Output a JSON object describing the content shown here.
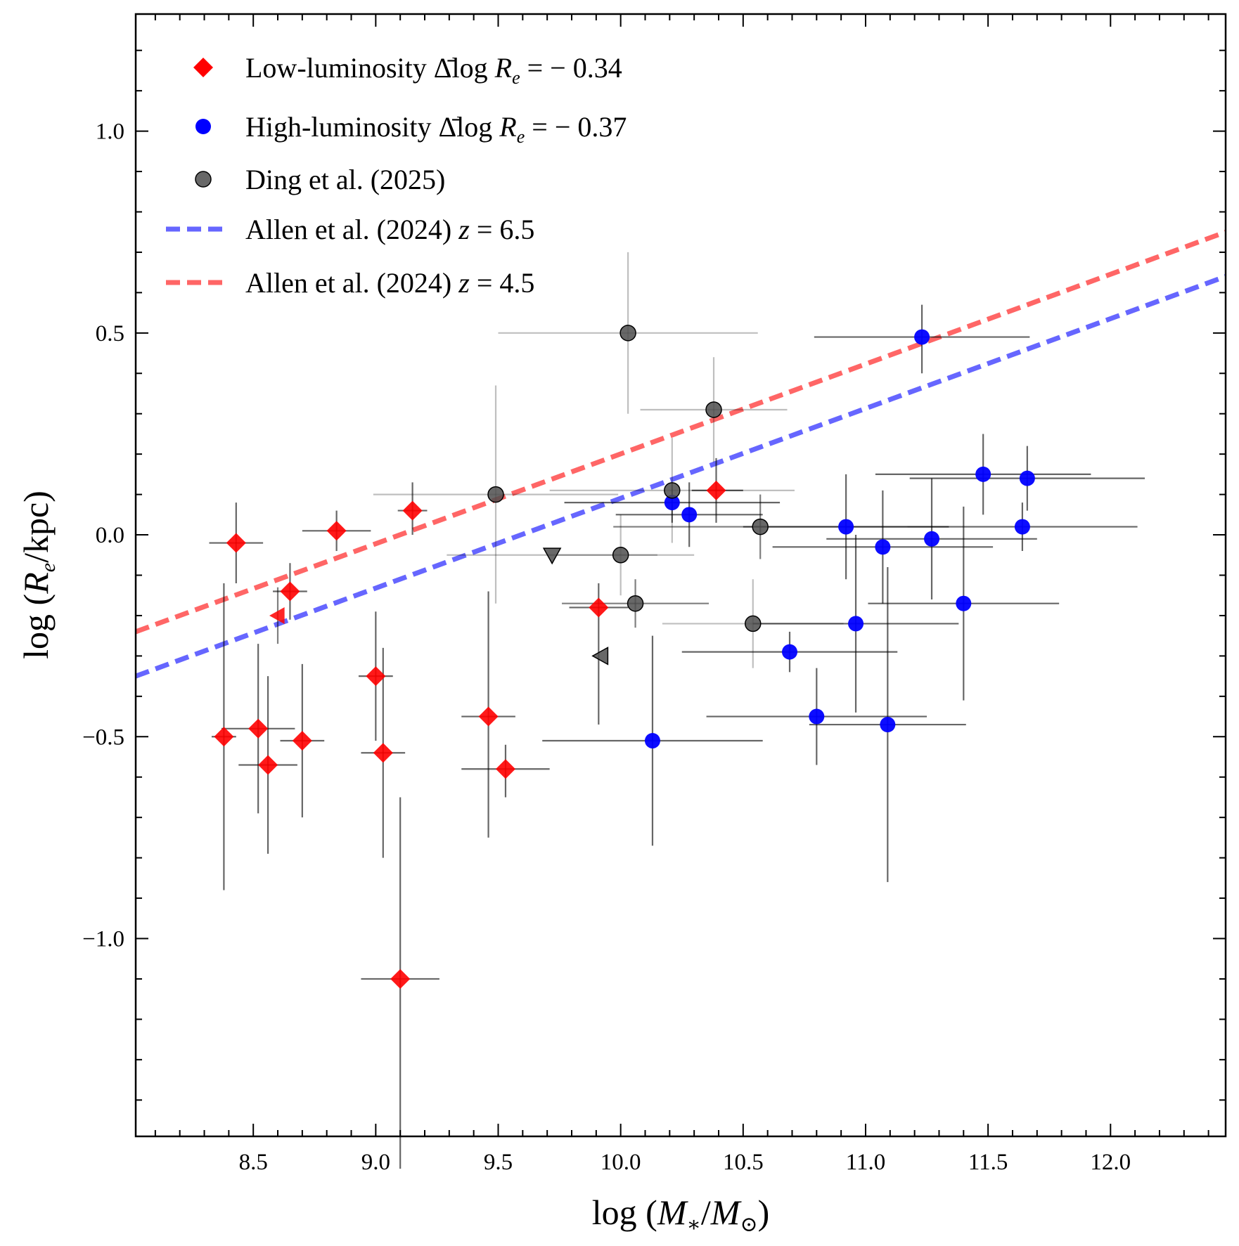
{
  "chart_data": {
    "type": "scatter",
    "xlabel": {
      "prefix": "log",
      "main": "M",
      "sub": "∗",
      "sep": "/",
      "main2": "M",
      "sub2": "⊙"
    },
    "ylabel": {
      "prefix": "log",
      "main": "R",
      "sub": "e",
      "suffix": "/kpc"
    },
    "xlim": [
      8.02,
      12.47
    ],
    "ylim": [
      -1.49,
      1.29
    ],
    "x_ticks": [
      {
        "value": 8.5,
        "label": "8.5"
      },
      {
        "value": 9.0,
        "label": "9.0"
      },
      {
        "value": 9.5,
        "label": "9.5"
      },
      {
        "value": 10.0,
        "label": "10.0"
      },
      {
        "value": 10.5,
        "label": "10.5"
      },
      {
        "value": 11.0,
        "label": "11.0"
      },
      {
        "value": 11.5,
        "label": "11.5"
      },
      {
        "value": 12.0,
        "label": "12.0"
      }
    ],
    "y_ticks": [
      {
        "value": 1.0,
        "label": "1.0"
      },
      {
        "value": 0.5,
        "label": "0.5"
      },
      {
        "value": 0.0,
        "label": "0.0"
      },
      {
        "value": -0.5,
        "label": "−0.5"
      },
      {
        "value": -1.0,
        "label": "−1.0"
      }
    ],
    "grid": false,
    "legend_position": "top-left",
    "legend": [
      {
        "marker": "diamond",
        "color": "#ff0000",
        "text": "Low-luminosity ",
        "math": {
          "prefix": "Δ̄log ",
          "main": "R",
          "sub": "e",
          "rest": " = − 0.34"
        }
      },
      {
        "marker": "circle",
        "color": "#0000ff",
        "text": "High-luminosity ",
        "math": {
          "prefix": "Δ̄log ",
          "main": "R",
          "sub": "e",
          "rest": " = − 0.37"
        }
      },
      {
        "marker": "circle",
        "color": "#4d4d4d",
        "text": "Ding et al. (2025)",
        "math": null
      },
      {
        "marker": "dashed-line",
        "color": "#6666ff",
        "text": "Allen et al. (2024) ",
        "math": {
          "prefix": "",
          "main": "z",
          "sub": "",
          "rest": " = 6.5"
        }
      },
      {
        "marker": "dashed-line",
        "color": "#ff6666",
        "text": "Allen et al. (2024) ",
        "math": {
          "prefix": "",
          "main": "z",
          "sub": "",
          "rest": " = 4.5"
        }
      }
    ],
    "series": [
      {
        "name": "Low-luminosity",
        "marker": "diamond",
        "color": "#ff0000",
        "points": [
          {
            "x": 8.43,
            "y": -0.02,
            "xerr": [
              0.11,
              0.11
            ],
            "yerr": [
              0.1,
              0.1
            ]
          },
          {
            "x": 8.84,
            "y": 0.01,
            "xerr": [
              0.14,
              0.14
            ],
            "yerr": [
              0.05,
              0.05
            ]
          },
          {
            "x": 9.15,
            "y": 0.06,
            "xerr": [
              0.06,
              0.06
            ],
            "yerr": [
              0.06,
              0.07
            ]
          },
          {
            "x": 8.65,
            "y": -0.14,
            "xerr": [
              0.07,
              0.07
            ],
            "yerr": [
              0.07,
              0.07
            ]
          },
          {
            "x": 8.38,
            "y": -0.5,
            "xerr": [
              0.05,
              0.05
            ],
            "yerr": [
              0.38,
              0.38
            ]
          },
          {
            "x": 8.52,
            "y": -0.48,
            "xerr": [
              0.15,
              0.15
            ],
            "yerr": [
              0.21,
              0.21
            ]
          },
          {
            "x": 8.56,
            "y": -0.57,
            "xerr": [
              0.12,
              0.12
            ],
            "yerr": [
              0.22,
              0.22
            ]
          },
          {
            "x": 8.7,
            "y": -0.51,
            "xerr": [
              0.09,
              0.09
            ],
            "yerr": [
              0.19,
              0.19
            ]
          },
          {
            "x": 9.0,
            "y": -0.35,
            "xerr": [
              0.07,
              0.07
            ],
            "yerr": [
              0.16,
              0.16
            ]
          },
          {
            "x": 9.03,
            "y": -0.54,
            "xerr": [
              0.09,
              0.09
            ],
            "yerr": [
              0.26,
              0.26
            ]
          },
          {
            "x": 9.1,
            "y": -1.1,
            "xerr": [
              0.16,
              0.16
            ],
            "yerr": [
              0.47,
              0.45
            ]
          },
          {
            "x": 9.46,
            "y": -0.45,
            "xerr": [
              0.11,
              0.11
            ],
            "yerr": [
              0.3,
              0.31
            ]
          },
          {
            "x": 9.53,
            "y": -0.58,
            "xerr": [
              0.18,
              0.18
            ],
            "yerr": [
              0.07,
              0.06
            ]
          },
          {
            "x": 9.91,
            "y": -0.18,
            "xerr": [
              0.12,
              0.12
            ],
            "yerr": [
              0.29,
              0.06
            ]
          },
          {
            "x": 10.39,
            "y": 0.11,
            "xerr": [
              0.1,
              0.11
            ],
            "yerr": [
              0.08,
              0.08
            ]
          }
        ]
      },
      {
        "name": "High-luminosity",
        "marker": "circle",
        "color": "#0000ff",
        "points": [
          {
            "x": 11.23,
            "y": 0.49,
            "xerr": [
              0.44,
              0.44
            ],
            "yerr": [
              0.09,
              0.08
            ]
          },
          {
            "x": 10.21,
            "y": 0.08,
            "xerr": [
              0.44,
              0.44
            ],
            "yerr": [
              0.05,
              0.05
            ]
          },
          {
            "x": 10.28,
            "y": 0.05,
            "xerr": [
              0.3,
              0.3
            ],
            "yerr": [
              0.08,
              0.08
            ]
          },
          {
            "x": 10.69,
            "y": -0.29,
            "xerr": [
              0.44,
              0.44
            ],
            "yerr": [
              0.05,
              0.05
            ]
          },
          {
            "x": 10.13,
            "y": -0.51,
            "xerr": [
              0.45,
              0.45
            ],
            "yerr": [
              0.26,
              0.26
            ]
          },
          {
            "x": 10.92,
            "y": 0.02,
            "xerr": [
              0.42,
              0.42
            ],
            "yerr": [
              0.13,
              0.13
            ]
          },
          {
            "x": 10.96,
            "y": -0.22,
            "xerr": [
              0.42,
              0.42
            ],
            "yerr": [
              0.22,
              0.22
            ]
          },
          {
            "x": 11.07,
            "y": -0.03,
            "xerr": [
              0.45,
              0.45
            ],
            "yerr": [
              0.14,
              0.14
            ]
          },
          {
            "x": 11.27,
            "y": -0.01,
            "xerr": [
              0.43,
              0.43
            ],
            "yerr": [
              0.15,
              0.15
            ]
          },
          {
            "x": 10.8,
            "y": -0.45,
            "xerr": [
              0.45,
              0.45
            ],
            "yerr": [
              0.12,
              0.12
            ]
          },
          {
            "x": 11.09,
            "y": -0.47,
            "xerr": [
              0.32,
              0.32
            ],
            "yerr": [
              0.39,
              0.39
            ]
          },
          {
            "x": 11.4,
            "y": -0.17,
            "xerr": [
              0.39,
              0.39
            ],
            "yerr": [
              0.24,
              0.24
            ]
          },
          {
            "x": 11.48,
            "y": 0.15,
            "xerr": [
              0.44,
              0.44
            ],
            "yerr": [
              0.1,
              0.1
            ]
          },
          {
            "x": 11.66,
            "y": 0.14,
            "xerr": [
              0.48,
              0.48
            ],
            "yerr": [
              0.08,
              0.08
            ]
          },
          {
            "x": 11.64,
            "y": 0.02,
            "xerr": [
              0.47,
              0.47
            ],
            "yerr": [
              0.06,
              0.06
            ]
          }
        ]
      },
      {
        "name": "Ding et al. (2025)",
        "marker": "circle",
        "color": "#4d4d4d",
        "points": [
          {
            "x": 10.03,
            "y": 0.5,
            "xerr": [
              0.53,
              0.53
            ],
            "yerr": [
              0.2,
              0.2
            ],
            "err_alpha": 0.25
          },
          {
            "x": 10.38,
            "y": 0.31,
            "xerr": [
              0.3,
              0.3
            ],
            "yerr": [
              0.13,
              0.13
            ],
            "err_alpha": 0.25
          },
          {
            "x": 9.49,
            "y": 0.1,
            "xerr": [
              0.5,
              0.5
            ],
            "yerr": [
              0.27,
              0.27
            ],
            "err_alpha": 0.25
          },
          {
            "x": 10.21,
            "y": 0.11,
            "xerr": [
              0.5,
              0.5
            ],
            "yerr": [
              0.13,
              0.13
            ],
            "err_alpha": 0.25
          },
          {
            "x": 10.57,
            "y": 0.02,
            "xerr": [
              0.6,
              0.6
            ],
            "yerr": [
              0.08,
              0.08
            ],
            "err_alpha": 0.5
          },
          {
            "x": 10.0,
            "y": -0.05,
            "xerr": [
              0.3,
              0.3
            ],
            "yerr": [
              0.1,
              0.1
            ],
            "err_alpha": 0.25
          },
          {
            "x": 10.06,
            "y": -0.17,
            "xerr": [
              0.3,
              0.3
            ],
            "yerr": [
              0.06,
              0.06
            ],
            "err_alpha": 0.5
          },
          {
            "x": 10.54,
            "y": -0.22,
            "xerr": [
              0.37,
              0.37
            ],
            "yerr": [
              0.11,
              0.11
            ],
            "err_alpha": 0.25
          }
        ]
      },
      {
        "name": "upper-limits",
        "marker": "triangle",
        "color": "#4d4d4d",
        "points": [
          {
            "x": 9.72,
            "y": -0.05,
            "dir": "down",
            "xerr": [
              0.43,
              0.43
            ],
            "yerr": [
              0,
              0
            ],
            "err_alpha": 0.25
          },
          {
            "x": 9.92,
            "y": -0.3,
            "dir": "left",
            "xerr": [
              0,
              0
            ],
            "yerr": [
              0,
              0
            ],
            "err_alpha": 0
          }
        ]
      },
      {
        "name": "low-luminosity-limit",
        "marker": "triangle",
        "color": "#ff0000",
        "points": [
          {
            "x": 8.6,
            "y": -0.2,
            "dir": "left",
            "xerr": [
              0,
              0
            ],
            "yerr": [
              0.07,
              0.07
            ],
            "err_alpha": 0.5
          }
        ]
      }
    ],
    "lines": [
      {
        "name": "z=6.5",
        "color": "#6666ff",
        "points": [
          [
            8.02,
            -0.35
          ],
          [
            12.47,
            0.64
          ]
        ]
      },
      {
        "name": "z=4.5",
        "color": "#ff6666",
        "points": [
          [
            8.02,
            -0.24
          ],
          [
            12.47,
            0.75
          ]
        ]
      }
    ]
  }
}
